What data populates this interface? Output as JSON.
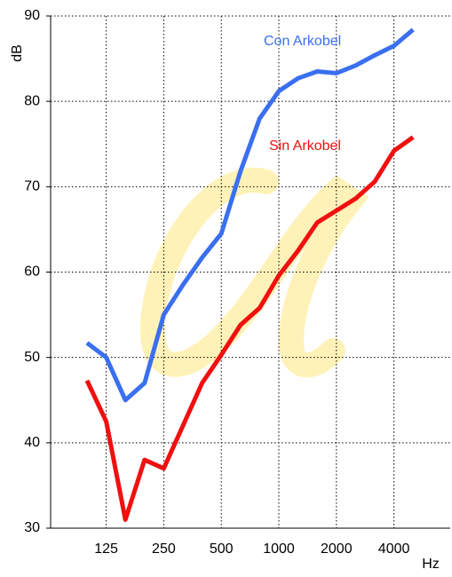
{
  "chart_data": {
    "type": "line",
    "x_label": "Hz",
    "y_label": "dB",
    "categories": [
      null,
      "125",
      null,
      null,
      "250",
      null,
      null,
      "500",
      null,
      null,
      "1000",
      null,
      null,
      "2000",
      null,
      null,
      "4000",
      null
    ],
    "series": [
      {
        "name": "Con Arkobel",
        "color": "#3a6ff0",
        "values": [
          51.7,
          50,
          45,
          47,
          55,
          58.5,
          61.7,
          64.5,
          71.8,
          78,
          81.2,
          82.7,
          83.5,
          83.3,
          84.2,
          85.4,
          86.5,
          88.4
        ]
      },
      {
        "name": "Sin Arkobel",
        "color": "#f01010",
        "values": [
          47.3,
          42.5,
          31,
          38,
          37,
          42,
          47,
          50.3,
          53.8,
          55.8,
          59.6,
          62.5,
          65.8,
          67.2,
          68.6,
          70.6,
          74.2,
          75.8
        ]
      }
    ],
    "ylim": [
      30,
      90
    ],
    "yticks": [
      30,
      40,
      50,
      60,
      70,
      80,
      90
    ],
    "grid": true
  }
}
